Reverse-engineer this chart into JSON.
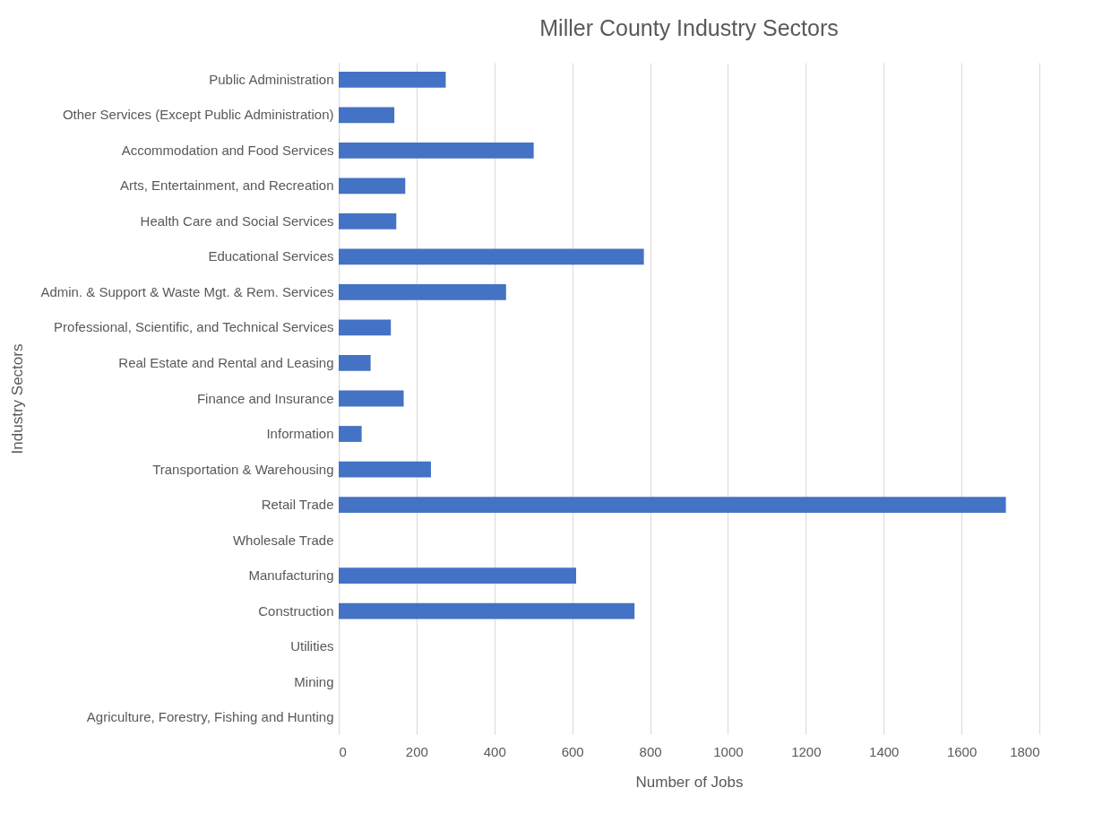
{
  "chart_data": {
    "type": "bar",
    "orientation": "horizontal",
    "title": "Miller County Industry Sectors",
    "xlabel": "Number of Jobs",
    "ylabel": "Industry Sectors",
    "categories": [
      "Public Administration",
      "Other Services (Except Public Administration)",
      "Accommodation and Food Services",
      "Arts, Entertainment, and Recreation",
      "Health Care and Social Services",
      "Educational Services",
      "Admin. & Support & Waste Mgt. & Rem. Services",
      "Professional, Scientific, and Technical Services",
      "Real Estate and Rental and Leasing",
      "Finance and Insurance",
      "Information",
      "Transportation & Warehousing",
      "Retail Trade",
      "Wholesale Trade",
      "Manufacturing",
      "Construction",
      "Utilities",
      "Mining",
      "Agriculture, Forestry, Fishing and Hunting"
    ],
    "values": [
      275,
      143,
      501,
      171,
      148,
      784,
      430,
      134,
      82,
      167,
      59,
      237,
      1714,
      0,
      610,
      760,
      0,
      0,
      0
    ],
    "color": "#4472c4",
    "xlim": [
      0,
      1800
    ],
    "xticks": [
      0,
      200,
      400,
      600,
      800,
      1000,
      1200,
      1400,
      1600,
      1800
    ],
    "grid": "x"
  }
}
